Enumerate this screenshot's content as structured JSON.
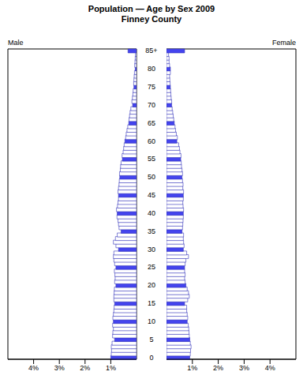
{
  "chart_data": {
    "type": "bar",
    "orientation": "horizontal",
    "title": "Population — Age by Sex 2009",
    "subtitle": "Finney County",
    "categories": [
      "0",
      null,
      null,
      null,
      null,
      "5",
      null,
      null,
      null,
      null,
      "10",
      null,
      null,
      null,
      null,
      "15",
      null,
      null,
      null,
      null,
      "20",
      null,
      null,
      null,
      null,
      "25",
      null,
      null,
      null,
      null,
      "30",
      null,
      null,
      null,
      null,
      "35",
      null,
      null,
      null,
      null,
      "40",
      null,
      null,
      null,
      null,
      "45",
      null,
      null,
      null,
      null,
      "50",
      null,
      null,
      null,
      null,
      "55",
      null,
      null,
      null,
      null,
      "60",
      null,
      null,
      null,
      null,
      "65",
      null,
      null,
      null,
      null,
      "70",
      null,
      null,
      null,
      null,
      "75",
      null,
      null,
      null,
      null,
      "80",
      null,
      null,
      null,
      null,
      "85+"
    ],
    "series": [
      {
        "name": "Male",
        "values": [
          1.0,
          0.98,
          0.97,
          0.98,
          0.95,
          0.85,
          0.93,
          0.92,
          0.9,
          0.93,
          0.9,
          0.92,
          0.9,
          0.88,
          0.87,
          0.85,
          0.88,
          0.88,
          0.87,
          0.86,
          0.8,
          0.85,
          0.83,
          0.84,
          0.86,
          0.8,
          0.85,
          0.88,
          0.9,
          0.88,
          0.7,
          0.8,
          0.9,
          0.82,
          0.75,
          0.6,
          0.68,
          0.7,
          0.72,
          0.76,
          0.75,
          0.78,
          0.74,
          0.72,
          0.7,
          0.7,
          0.72,
          0.7,
          0.68,
          0.67,
          0.65,
          0.66,
          0.63,
          0.62,
          0.6,
          0.55,
          0.56,
          0.52,
          0.5,
          0.48,
          0.45,
          0.42,
          0.4,
          0.37,
          0.34,
          0.3,
          0.29,
          0.27,
          0.25,
          0.22,
          0.15,
          0.18,
          0.16,
          0.14,
          0.13,
          0.1,
          0.11,
          0.1,
          0.09,
          0.08,
          0.05,
          0.07,
          0.06,
          0.05,
          0.04,
          0.33
        ],
        "colors": [
          "#4444ee",
          "#ffffff",
          "#ffffff",
          "#ffffff",
          "#ffffff",
          "#4444ee",
          "#ffffff",
          "#ffffff",
          "#ffffff",
          "#ffffff",
          "#4444ee",
          "#ffffff",
          "#ffffff",
          "#ffffff",
          "#ffffff",
          "#4444ee",
          "#ffffff",
          "#ffffff",
          "#ffffff",
          "#ffffff",
          "#4444ee",
          "#ffffff",
          "#ffffff",
          "#ffffff",
          "#ffffff",
          "#4444ee",
          "#ffffff",
          "#ffffff",
          "#ffffff",
          "#ffffff",
          "#4444ee",
          "#ffffff",
          "#ffffff",
          "#ffffff",
          "#ffffff",
          "#4444ee",
          "#ffffff",
          "#ffffff",
          "#ffffff",
          "#ffffff",
          "#4444ee",
          "#ffffff",
          "#ffffff",
          "#ffffff",
          "#ffffff",
          "#4444ee",
          "#ffffff",
          "#ffffff",
          "#ffffff",
          "#ffffff",
          "#4444ee",
          "#ffffff",
          "#ffffff",
          "#ffffff",
          "#ffffff",
          "#4444ee",
          "#ffffff",
          "#ffffff",
          "#ffffff",
          "#ffffff",
          "#4444ee",
          "#ffffff",
          "#ffffff",
          "#ffffff",
          "#ffffff",
          "#4444ee",
          "#ffffff",
          "#ffffff",
          "#ffffff",
          "#ffffff",
          "#4444ee",
          "#ffffff",
          "#ffffff",
          "#ffffff",
          "#ffffff",
          "#4444ee",
          "#ffffff",
          "#ffffff",
          "#ffffff",
          "#ffffff",
          "#4444ee",
          "#ffffff",
          "#ffffff",
          "#ffffff",
          "#ffffff",
          "#4444ee"
        ]
      },
      {
        "name": "Female",
        "values": [
          0.9,
          0.92,
          0.93,
          0.95,
          0.92,
          0.9,
          0.88,
          0.87,
          0.86,
          0.84,
          0.8,
          0.82,
          0.8,
          0.78,
          0.78,
          0.7,
          0.82,
          0.88,
          0.85,
          0.8,
          0.75,
          0.72,
          0.7,
          0.72,
          0.7,
          0.7,
          0.72,
          0.75,
          0.85,
          0.78,
          0.65,
          0.68,
          0.66,
          0.65,
          0.66,
          0.6,
          0.62,
          0.63,
          0.64,
          0.65,
          0.65,
          0.66,
          0.64,
          0.63,
          0.65,
          0.65,
          0.66,
          0.63,
          0.64,
          0.62,
          0.6,
          0.62,
          0.6,
          0.58,
          0.57,
          0.55,
          0.56,
          0.52,
          0.5,
          0.47,
          0.4,
          0.42,
          0.38,
          0.35,
          0.33,
          0.3,
          0.28,
          0.26,
          0.24,
          0.22,
          0.2,
          0.2,
          0.18,
          0.17,
          0.16,
          0.15,
          0.14,
          0.13,
          0.12,
          0.15,
          0.15,
          0.12,
          0.1,
          0.1,
          0.08,
          0.7
        ],
        "colors": [
          "#4444ee",
          "#ffffff",
          "#ffffff",
          "#ffffff",
          "#ffffff",
          "#4444ee",
          "#ffffff",
          "#ffffff",
          "#ffffff",
          "#ffffff",
          "#4444ee",
          "#ffffff",
          "#ffffff",
          "#ffffff",
          "#ffffff",
          "#4444ee",
          "#ffffff",
          "#ffffff",
          "#ffffff",
          "#ffffff",
          "#4444ee",
          "#ffffff",
          "#ffffff",
          "#ffffff",
          "#ffffff",
          "#4444ee",
          "#ffffff",
          "#ffffff",
          "#ffffff",
          "#ffffff",
          "#4444ee",
          "#ffffff",
          "#ffffff",
          "#ffffff",
          "#ffffff",
          "#4444ee",
          "#ffffff",
          "#ffffff",
          "#ffffff",
          "#ffffff",
          "#4444ee",
          "#ffffff",
          "#ffffff",
          "#ffffff",
          "#ffffff",
          "#4444ee",
          "#ffffff",
          "#ffffff",
          "#ffffff",
          "#ffffff",
          "#4444ee",
          "#ffffff",
          "#ffffff",
          "#ffffff",
          "#ffffff",
          "#4444ee",
          "#ffffff",
          "#ffffff",
          "#ffffff",
          "#ffffff",
          "#4444ee",
          "#ffffff",
          "#ffffff",
          "#ffffff",
          "#ffffff",
          "#4444ee",
          "#ffffff",
          "#ffffff",
          "#ffffff",
          "#ffffff",
          "#4444ee",
          "#ffffff",
          "#ffffff",
          "#ffffff",
          "#ffffff",
          "#4444ee",
          "#ffffff",
          "#ffffff",
          "#ffffff",
          "#ffffff",
          "#4444ee",
          "#ffffff",
          "#ffffff",
          "#ffffff",
          "#ffffff",
          "#4444ee"
        ]
      }
    ],
    "xlim": [
      0,
      5
    ],
    "xticks": [
      {
        "value": 1,
        "label": "1%"
      },
      {
        "value": 2,
        "label": "2%"
      },
      {
        "value": 3,
        "label": "3%"
      },
      {
        "value": 4,
        "label": "4%"
      }
    ]
  }
}
